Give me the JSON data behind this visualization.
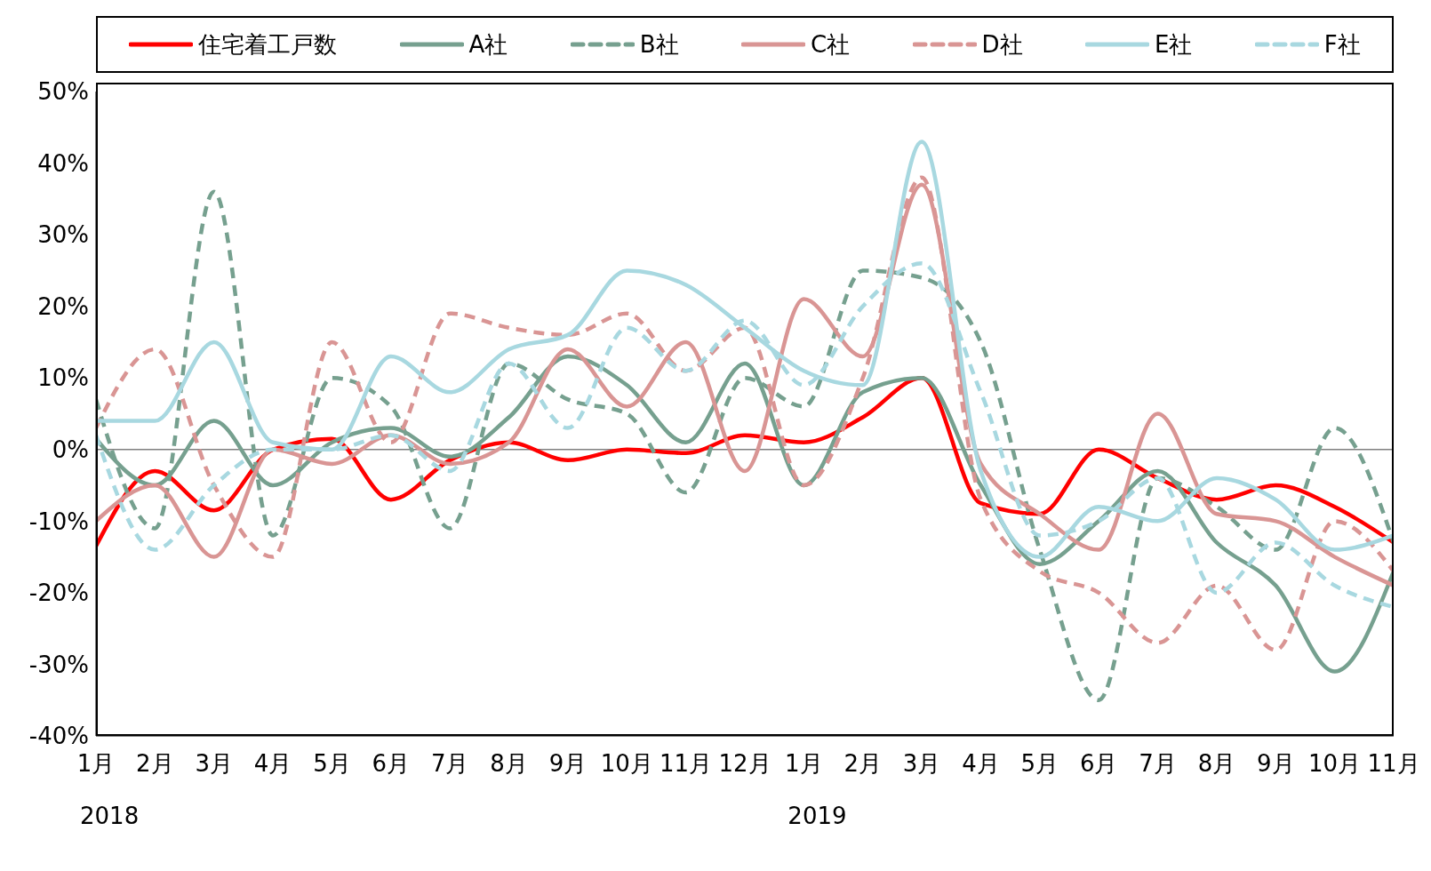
{
  "chart_data": {
    "type": "line",
    "categories": [
      "1月",
      "2月",
      "3月",
      "4月",
      "5月",
      "6月",
      "7月",
      "8月",
      "9月",
      "10月",
      "11月",
      "12月",
      "1月",
      "2月",
      "3月",
      "4月",
      "5月",
      "6月",
      "7月",
      "8月",
      "9月",
      "10月",
      "11月"
    ],
    "annotations": [
      "2018",
      "2019"
    ],
    "ylim": [
      -40,
      50
    ],
    "yticks": [
      {
        "value": -40,
        "label": "-40%"
      },
      {
        "value": -30,
        "label": "-30%"
      },
      {
        "value": -20,
        "label": "-20%"
      },
      {
        "value": -10,
        "label": "-10%"
      },
      {
        "value": 0,
        "label": "0%"
      },
      {
        "value": 10,
        "label": "10%"
      },
      {
        "value": 20,
        "label": "20%"
      },
      {
        "value": 30,
        "label": "30%"
      },
      {
        "value": 40,
        "label": "40%"
      },
      {
        "value": 50,
        "label": "50%"
      }
    ],
    "grid": false,
    "legend": "top",
    "marker": "none",
    "ref_lines": [
      {
        "axis": "y",
        "value": 0,
        "color": "#808080"
      }
    ],
    "series": [
      {
        "name": "住宅着工戸数",
        "color": "#ff0000",
        "line_style": "solid",
        "values": [
          -13.5,
          -3,
          -8.5,
          0,
          1.5,
          -7,
          -1.5,
          1,
          -1.5,
          0,
          -0.5,
          2,
          1,
          4.5,
          10,
          -7.5,
          -9,
          0,
          -4,
          -7,
          -5,
          -8,
          -13
        ]
      },
      {
        "name": "A社",
        "color": "#76a08f",
        "line_style": "solid",
        "values": [
          1.5,
          -5,
          4,
          -5,
          1,
          3,
          -1,
          4.5,
          13,
          9,
          1,
          12,
          -5,
          8,
          10,
          -5,
          -16,
          -10,
          -3,
          -13,
          -19,
          -31,
          -17
        ]
      },
      {
        "name": "B社",
        "color": "#76a08f",
        "line_style": "dashed",
        "values": [
          7,
          -11,
          36,
          -12,
          10,
          6,
          -11,
          12,
          7,
          5,
          -6,
          10,
          6,
          25,
          24,
          15,
          -14,
          -35,
          -4,
          -8,
          -14,
          3,
          -13
        ]
      },
      {
        "name": "C社",
        "color": "#d99594",
        "line_style": "solid",
        "values": [
          -10,
          -5,
          -15,
          0,
          -2,
          2,
          -2,
          1,
          14,
          6,
          15,
          -3,
          21,
          13,
          37,
          -2,
          -9,
          -14,
          5,
          -9,
          -10,
          -15,
          -19
        ]
      },
      {
        "name": "D社",
        "color": "#d99594",
        "line_style": "dashed",
        "values": [
          3,
          14,
          -5,
          -15,
          15,
          1,
          19,
          17,
          16,
          19,
          11,
          17,
          -5,
          10,
          38,
          -7,
          -17,
          -20,
          -27,
          -19,
          -28,
          -10,
          -17
        ]
      },
      {
        "name": "E社",
        "color": "#a8d8e0",
        "line_style": "solid",
        "values": [
          4,
          4,
          15,
          1,
          0,
          13,
          8,
          14,
          16,
          25,
          23,
          17,
          11,
          9,
          43,
          -3,
          -15,
          -8,
          -10,
          -4,
          -7,
          -14,
          -12
        ]
      },
      {
        "name": "F社",
        "color": "#a8d8e0",
        "line_style": "dashed",
        "values": [
          2,
          -14,
          -5,
          0,
          0,
          2,
          -3,
          12,
          3,
          17,
          11,
          18,
          9,
          20,
          26,
          8,
          -12,
          -10,
          -4,
          -20,
          -13,
          -19,
          -22
        ]
      }
    ]
  }
}
